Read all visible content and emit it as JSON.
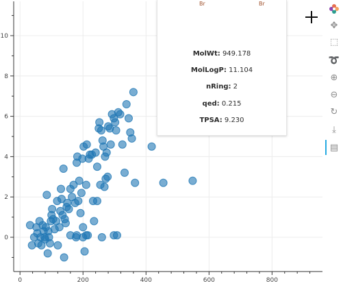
{
  "chart_data": {
    "type": "scatter",
    "xlim": [
      -20,
      960
    ],
    "ylim": [
      -1.7,
      11.7
    ],
    "x_ticks": [
      0,
      200,
      400,
      600,
      800
    ],
    "y_ticks": [
      0,
      2,
      4,
      6,
      8,
      10
    ],
    "grid": true,
    "marker_color": "#1f77b4",
    "points": [
      [
        32,
        0.6
      ],
      [
        38,
        -0.4
      ],
      [
        45,
        0.0
      ],
      [
        52,
        0.5
      ],
      [
        55,
        0.2
      ],
      [
        58,
        -0.3
      ],
      [
        62,
        0.8
      ],
      [
        65,
        0.0
      ],
      [
        68,
        -0.4
      ],
      [
        72,
        0.6
      ],
      [
        75,
        0.3
      ],
      [
        78,
        0.0
      ],
      [
        80,
        -0.1
      ],
      [
        82,
        0.5
      ],
      [
        85,
        2.1
      ],
      [
        88,
        -0.8
      ],
      [
        90,
        0.3
      ],
      [
        92,
        0.0
      ],
      [
        95,
        -0.3
      ],
      [
        98,
        0.8
      ],
      [
        100,
        1.1
      ],
      [
        102,
        1.4
      ],
      [
        105,
        0.9
      ],
      [
        110,
        0.4
      ],
      [
        115,
        0.8
      ],
      [
        118,
        1.8
      ],
      [
        120,
        -0.4
      ],
      [
        125,
        0.5
      ],
      [
        128,
        1.3
      ],
      [
        130,
        2.4
      ],
      [
        132,
        1.9
      ],
      [
        135,
        1.1
      ],
      [
        138,
        3.4
      ],
      [
        140,
        -1.0
      ],
      [
        142,
        0.9
      ],
      [
        145,
        0.7
      ],
      [
        148,
        1.5
      ],
      [
        150,
        1.7
      ],
      [
        155,
        1.4
      ],
      [
        160,
        2.4
      ],
      [
        165,
        2.0
      ],
      [
        170,
        2.6
      ],
      [
        175,
        1.7
      ],
      [
        178,
        0.0
      ],
      [
        180,
        3.7
      ],
      [
        182,
        4.0
      ],
      [
        185,
        1.8
      ],
      [
        188,
        2.8
      ],
      [
        192,
        1.2
      ],
      [
        195,
        2.2
      ],
      [
        198,
        3.9
      ],
      [
        200,
        0.5
      ],
      [
        202,
        4.5
      ],
      [
        205,
        -0.7
      ],
      [
        210,
        2.6
      ],
      [
        212,
        4.6
      ],
      [
        215,
        0.1
      ],
      [
        218,
        3.9
      ],
      [
        222,
        4.1
      ],
      [
        228,
        4.1
      ],
      [
        232,
        1.8
      ],
      [
        235,
        0.8
      ],
      [
        240,
        4.2
      ],
      [
        245,
        3.5
      ],
      [
        250,
        5.4
      ],
      [
        252,
        5.7
      ],
      [
        255,
        2.6
      ],
      [
        258,
        5.3
      ],
      [
        262,
        4.8
      ],
      [
        265,
        4.5
      ],
      [
        268,
        2.5
      ],
      [
        270,
        4.0
      ],
      [
        272,
        2.9
      ],
      [
        275,
        4.2
      ],
      [
        278,
        3.0
      ],
      [
        280,
        5.5
      ],
      [
        285,
        5.4
      ],
      [
        288,
        4.6
      ],
      [
        292,
        6.1
      ],
      [
        298,
        5.9
      ],
      [
        302,
        5.7
      ],
      [
        305,
        5.3
      ],
      [
        308,
        0.1
      ],
      [
        312,
        6.2
      ],
      [
        318,
        6.1
      ],
      [
        325,
        4.6
      ],
      [
        332,
        3.2
      ],
      [
        338,
        6.6
      ],
      [
        345,
        5.9
      ],
      [
        350,
        5.2
      ],
      [
        355,
        4.9
      ],
      [
        360,
        7.2
      ],
      [
        365,
        2.7
      ],
      [
        418,
        4.5
      ],
      [
        455,
        2.7
      ],
      [
        548,
        2.8
      ],
      [
        260,
        0.0
      ],
      [
        298,
        0.1
      ],
      [
        245,
        1.8
      ],
      [
        210,
        0.1
      ],
      [
        160,
        0.1
      ],
      [
        180,
        0.1
      ],
      [
        200,
        0.0
      ]
    ]
  },
  "tooltip": {
    "molecule_atoms": [
      "Br",
      "Br"
    ],
    "rows": [
      {
        "label": "MolWt:",
        "value": "949.178"
      },
      {
        "label": "MolLogP:",
        "value": "11.104"
      },
      {
        "label": "nRing:",
        "value": "2"
      },
      {
        "label": "qed:",
        "value": "0.215"
      },
      {
        "label": "TPSA:",
        "value": "9.230"
      }
    ]
  },
  "toolbar": {
    "logo_icon": "bokeh-logo-icon",
    "tools": [
      {
        "name": "pan-icon",
        "glyph": "✥",
        "active": false
      },
      {
        "name": "box-zoom-icon",
        "glyph": "⬚",
        "active": false
      },
      {
        "name": "lasso-select-icon",
        "glyph": "➰",
        "active": false
      },
      {
        "name": "zoom-in-icon",
        "glyph": "⊕",
        "active": false
      },
      {
        "name": "zoom-out-icon",
        "glyph": "⊖",
        "active": false
      },
      {
        "name": "reset-icon",
        "glyph": "↻",
        "active": false
      },
      {
        "name": "save-icon",
        "glyph": "⤓",
        "active": false
      },
      {
        "name": "hover-icon",
        "glyph": "▤",
        "active": true
      }
    ]
  }
}
